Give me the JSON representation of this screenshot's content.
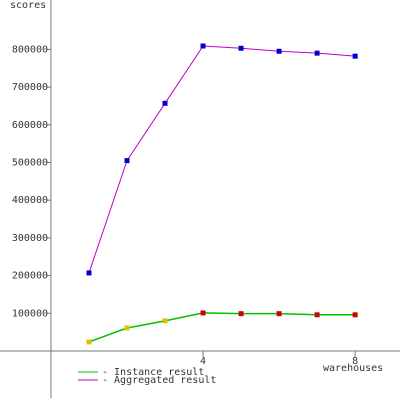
{
  "chart_data": {
    "type": "line",
    "y_label": "scores",
    "x_label": "warehouses",
    "x": [
      1,
      2,
      3,
      4,
      5,
      6,
      7,
      8
    ],
    "series": [
      {
        "name": "- Instance result",
        "color": "#00c000",
        "values": [
          24000,
          61000,
          80000,
          101000,
          99000,
          99000,
          96000,
          96000
        ],
        "marker_colors": [
          "#e0c000",
          "#e0c000",
          "#e0c000",
          "#d00000",
          "#d00000",
          "#d00000",
          "#d00000",
          "#d00000"
        ]
      },
      {
        "name": "- Aggregated result",
        "color": "#c000c0",
        "values": [
          207000,
          505000,
          657000,
          809000,
          803000,
          795000,
          790000,
          782000
        ],
        "marker_colors": [
          "#0000d0",
          "#0000d0",
          "#0000d0",
          "#0000d0",
          "#0000d0",
          "#0000d0",
          "#0000d0",
          "#0000d0"
        ]
      }
    ],
    "xlim": [
      -1.34,
      9.18
    ],
    "ylim": [
      -130000,
      931000
    ],
    "xticks": [
      4,
      8
    ],
    "yticks": [
      100000,
      200000,
      300000,
      400000,
      500000,
      600000,
      700000,
      800000
    ]
  }
}
